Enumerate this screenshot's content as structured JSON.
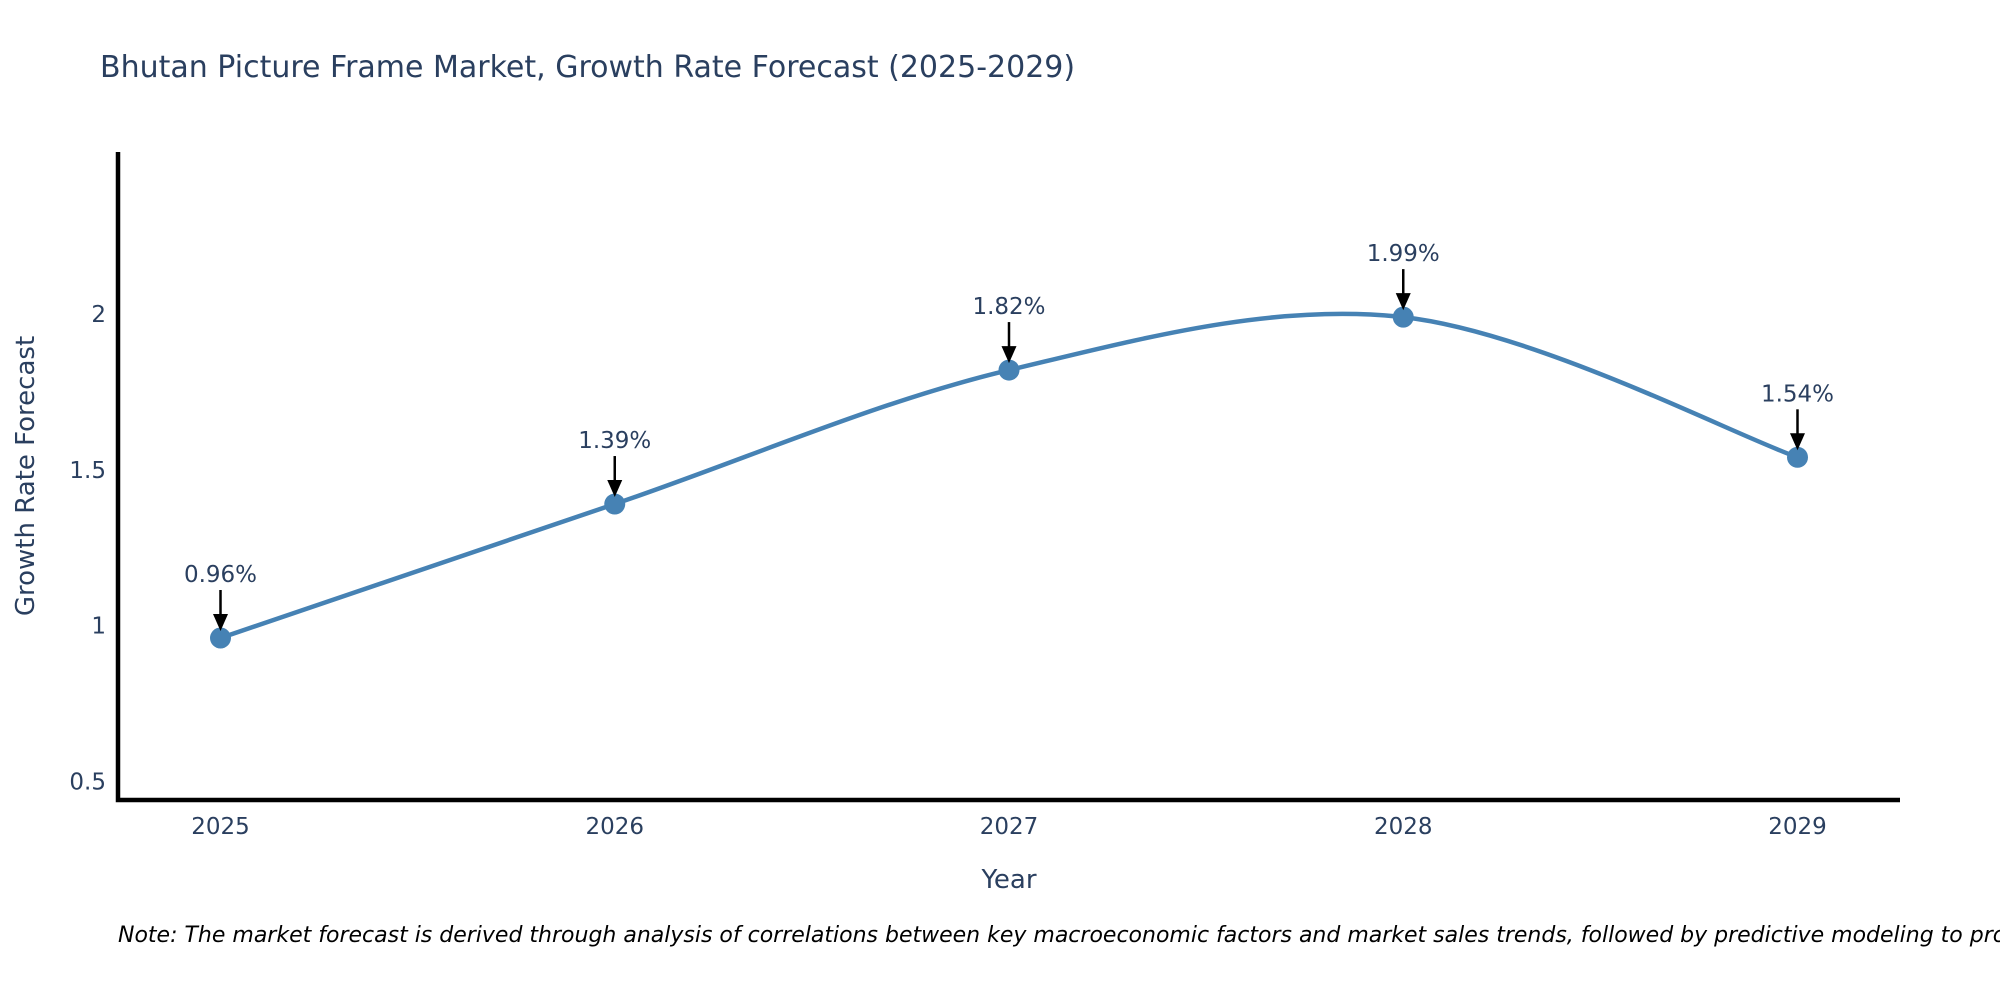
{
  "title": "Bhutan Picture Frame Market, Growth Rate Forecast (2025-2029)",
  "note": "Note: The market forecast is derived through analysis of correlations between key macroeconomic factors and market sales trends, followed by predictive modeling to project future sales",
  "chart_data": {
    "type": "line",
    "title": "Bhutan Picture Frame Market, Growth Rate Forecast (2025-2029)",
    "xlabel": "Year",
    "ylabel": "Growth Rate Forecast",
    "x": [
      2025,
      2026,
      2027,
      2028,
      2029
    ],
    "values": [
      0.96,
      1.39,
      1.82,
      1.99,
      1.54
    ],
    "point_labels": [
      "0.96%",
      "1.39%",
      "1.82%",
      "1.99%",
      "1.54%"
    ],
    "series_name": "Growth Rate Forecast",
    "line_shape": "spline",
    "xlim": [
      2024.74,
      2029.26
    ],
    "ylim": [
      0.44,
      2.52
    ],
    "yticks": {
      "values": [
        0.5,
        1.0,
        1.5,
        2.0
      ],
      "labels": [
        "0.5",
        "1",
        "1.5",
        "2"
      ]
    },
    "xticks": {
      "values": [
        2025,
        2026,
        2027,
        2028,
        2029
      ],
      "labels": [
        "2025",
        "2026",
        "2027",
        "2028",
        "2029"
      ]
    },
    "grid": false,
    "legend": false,
    "annotations": "value labels with downward black arrows above each point",
    "colors": {
      "line": "#4682b4",
      "marker": "#4682b4",
      "text": "#2a3f5f",
      "axis": "#000000",
      "arrow": "#000000",
      "note_text": "#000000",
      "background": "#ffffff"
    }
  }
}
